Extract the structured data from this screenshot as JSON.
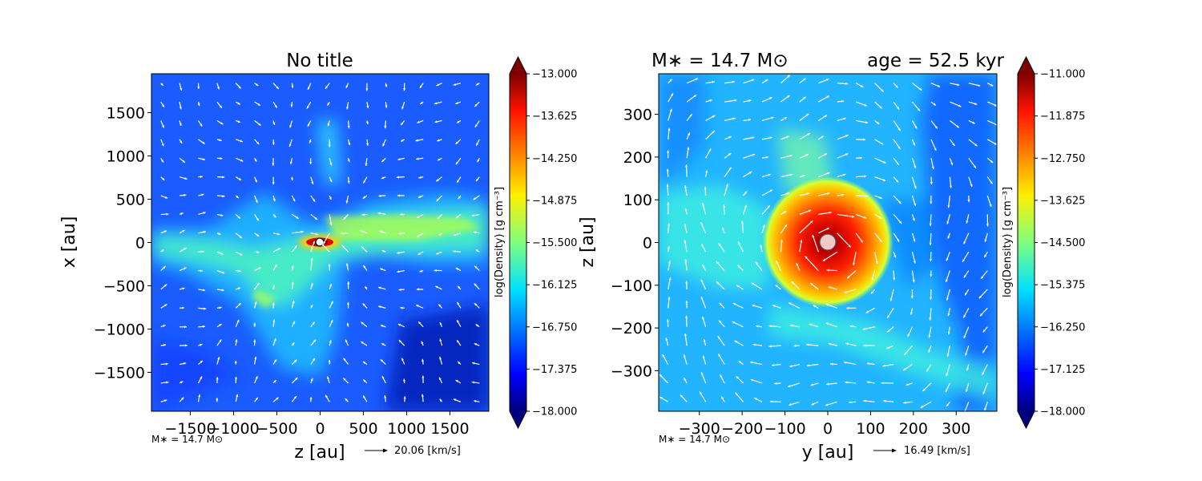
{
  "chart_data": [
    {
      "type": "heatmap",
      "title": "No title",
      "xlabel": "z [au]",
      "ylabel": "x [au]",
      "xlim": [
        -1950,
        1950
      ],
      "ylim": [
        -1950,
        1950
      ],
      "x_ticks": [
        -1500,
        -1000,
        -500,
        0,
        500,
        1000,
        1500
      ],
      "x_tick_labels": [
        "−1500",
        "−1000",
        "−500",
        "0",
        "500",
        "1000",
        "1500"
      ],
      "y_ticks": [
        -1500,
        -1000,
        -500,
        0,
        500,
        1000,
        1500
      ],
      "y_tick_labels": [
        "−1500",
        "−1000",
        "−500",
        "0",
        "500",
        "1000",
        "1500"
      ],
      "colorbar": {
        "label": "log(Density) [g cm⁻³]",
        "range": [
          -18.0,
          -13.0
        ],
        "ticks": [
          "−13.000",
          "−13.625",
          "−14.250",
          "−14.875",
          "−15.500",
          "−16.125",
          "−16.750",
          "−17.375",
          "−18.000"
        ],
        "colormap": "jet",
        "extend": "both"
      },
      "vector_key": {
        "label": "20.06 [km/s]"
      },
      "mass_note": "M∗ = 14.7 M⊙"
    },
    {
      "type": "heatmap",
      "title_left": "M∗ = 14.7 M⊙",
      "title_right": "age = 52.5 kyr",
      "xlabel": "y [au]",
      "ylabel": "z [au]",
      "xlim": [
        -395,
        395
      ],
      "ylim": [
        -395,
        395
      ],
      "x_ticks": [
        -300,
        -200,
        -100,
        0,
        100,
        200,
        300
      ],
      "x_tick_labels": [
        "−300",
        "−200",
        "−100",
        "0",
        "100",
        "200",
        "300"
      ],
      "y_ticks": [
        -300,
        -200,
        -100,
        0,
        100,
        200,
        300
      ],
      "y_tick_labels": [
        "−300",
        "−200",
        "−100",
        "0",
        "100",
        "200",
        "300"
      ],
      "colorbar": {
        "label": "log(Density) [g cm⁻³]",
        "range": [
          -18.0,
          -11.0
        ],
        "ticks": [
          "−11.000",
          "−11.875",
          "−12.750",
          "−13.625",
          "−14.500",
          "−15.375",
          "−16.250",
          "−17.125",
          "−18.000"
        ],
        "colormap": "jet",
        "extend": "both"
      },
      "vector_key": {
        "label": "16.49 [km/s]"
      },
      "mass_note": "M∗ = 14.7 M⊙"
    }
  ]
}
